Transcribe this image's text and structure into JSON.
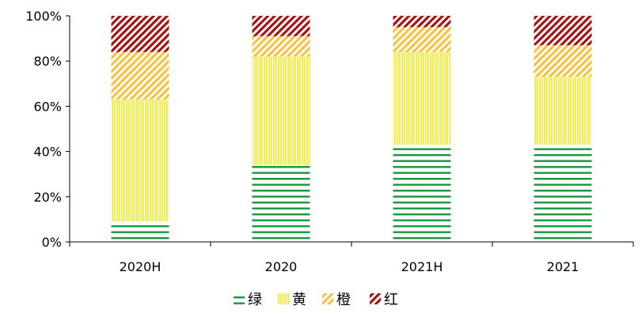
{
  "chart_data": {
    "type": "bar",
    "stacked": true,
    "categories": [
      "2020H",
      "2020",
      "2021H",
      "2021"
    ],
    "series": [
      {
        "name": "绿",
        "values": [
          9,
          34,
          43,
          43
        ],
        "color": "#1a9641",
        "pattern": "horizontal-lines"
      },
      {
        "name": "黄",
        "values": [
          54,
          48,
          41,
          30
        ],
        "color": "#f2ee4a",
        "pattern": "vertical-lines"
      },
      {
        "name": "橙",
        "values": [
          21,
          9,
          11,
          14
        ],
        "color": "#f5c242",
        "pattern": "diagonal-lines"
      },
      {
        "name": "红",
        "values": [
          16,
          9,
          5,
          13
        ],
        "color": "#a31515",
        "pattern": "diagonal-lines"
      }
    ],
    "ylim": [
      0,
      100
    ],
    "yticks": [
      "0%",
      "20%",
      "40%",
      "60%",
      "80%",
      "100%"
    ],
    "legend_position": "bottom",
    "grid": false
  }
}
